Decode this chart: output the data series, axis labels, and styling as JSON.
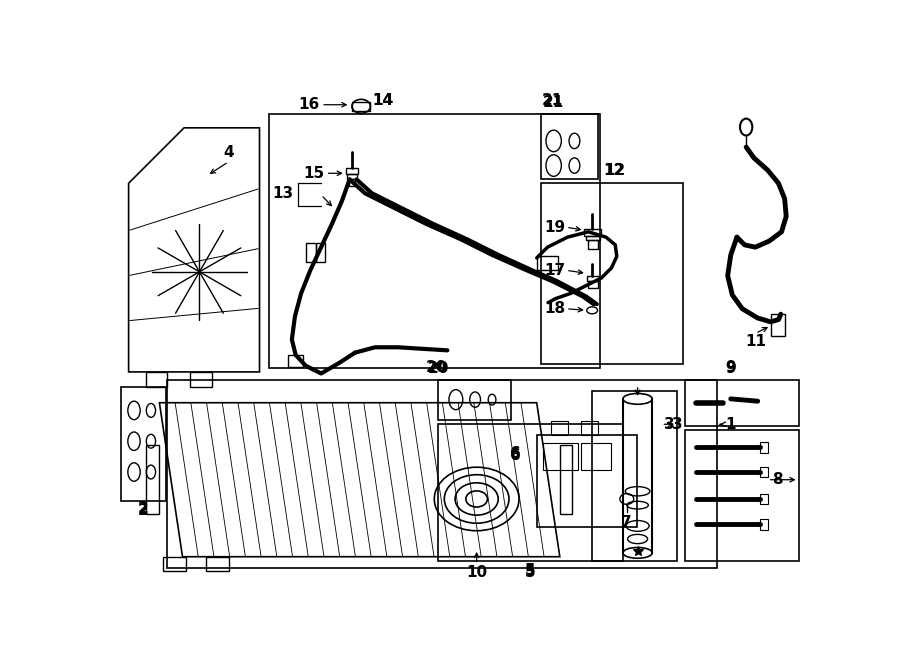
{
  "bg": "#ffffff",
  "lc": "#000000",
  "fig_w": 9.0,
  "fig_h": 6.61
}
